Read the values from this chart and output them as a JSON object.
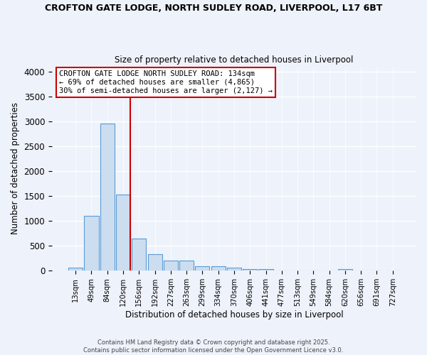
{
  "title1": "CROFTON GATE LODGE, NORTH SUDLEY ROAD, LIVERPOOL, L17 6BT",
  "title2": "Size of property relative to detached houses in Liverpool",
  "xlabel": "Distribution of detached houses by size in Liverpool",
  "ylabel": "Number of detached properties",
  "bins": [
    "13sqm",
    "49sqm",
    "84sqm",
    "120sqm",
    "156sqm",
    "192sqm",
    "227sqm",
    "263sqm",
    "299sqm",
    "334sqm",
    "370sqm",
    "406sqm",
    "441sqm",
    "477sqm",
    "513sqm",
    "549sqm",
    "584sqm",
    "620sqm",
    "656sqm",
    "691sqm",
    "727sqm"
  ],
  "values": [
    55,
    1100,
    2960,
    1525,
    645,
    330,
    200,
    200,
    85,
    85,
    55,
    30,
    30,
    0,
    0,
    0,
    0,
    30,
    0,
    0,
    0
  ],
  "bar_color": "#ccddf0",
  "bar_edge_color": "#5b9bd5",
  "vline_color": "#cc0000",
  "annotation_line1": "CROFTON GATE LODGE NORTH SUDLEY ROAD: 134sqm",
  "annotation_line2": "← 69% of detached houses are smaller (4,865)",
  "annotation_line3": "30% of semi-detached houses are larger (2,127) →",
  "annotation_box_color": "#ffffff",
  "annotation_box_edge_color": "#cc0000",
  "ylim": [
    0,
    4100
  ],
  "yticks": [
    0,
    500,
    1000,
    1500,
    2000,
    2500,
    3000,
    3500,
    4000
  ],
  "footer1": "Contains HM Land Registry data © Crown copyright and database right 2025.",
  "footer2": "Contains public sector information licensed under the Open Government Licence v3.0.",
  "background_color": "#eef2fa",
  "grid_color": "#ffffff"
}
